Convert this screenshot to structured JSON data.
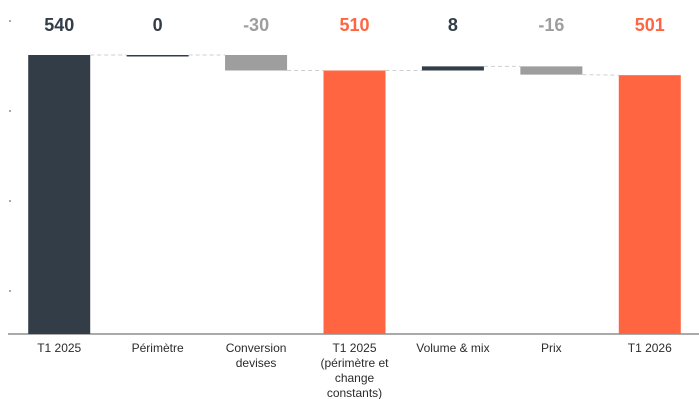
{
  "chart_data": {
    "type": "bar",
    "subtype": "waterfall",
    "categories": [
      [
        "T1 2025"
      ],
      [
        "Périmètre"
      ],
      [
        "Conversion",
        "devises"
      ],
      [
        "T1 2025",
        "(périmètre et",
        "change",
        "constants)"
      ],
      [
        "Volume & mix"
      ],
      [
        "Prix"
      ],
      [
        "T1 2026"
      ]
    ],
    "values": [
      540,
      0,
      -30,
      510,
      8,
      -16,
      501
    ],
    "value_labels": [
      "540",
      "0",
      "-30",
      "510",
      "8",
      "-16",
      "501"
    ],
    "kinds": [
      "total",
      "delta",
      "delta",
      "total",
      "delta",
      "delta",
      "total"
    ],
    "colors": {
      "start_total": "#333d48",
      "sub_total": "#ff6540",
      "increase": "#333d48",
      "decrease": "#9e9e9e",
      "zero": "#333d48",
      "connector": "#cfcfcf",
      "axis": "#555555",
      "label_dark": "#333d48",
      "label_orange": "#ff6540",
      "label_grey": "#9e9e9e"
    },
    "ylim": [
      0,
      540
    ],
    "grid": false,
    "legend": "none",
    "title": "",
    "xlabel": "",
    "ylabel": ""
  }
}
